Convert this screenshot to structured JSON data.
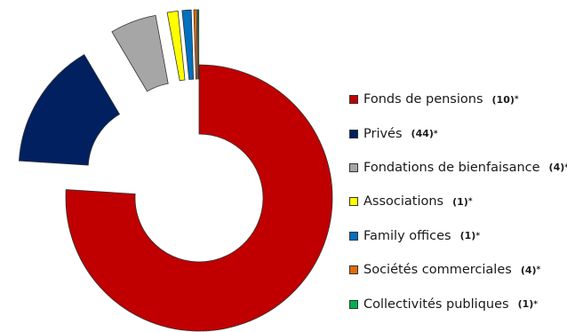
{
  "chart_data": {
    "type": "pie",
    "donut": true,
    "exploded": true,
    "title": "",
    "legend_position": "right",
    "slices": [
      {
        "label": "Fonds de pensions",
        "count": "(10)",
        "mark": "*",
        "value": 76.0,
        "color": "#c00000"
      },
      {
        "label": "Privés",
        "count": "(44)",
        "mark": "*",
        "value": 15.5,
        "color": "#002060"
      },
      {
        "label": "Fondations de bienfaisance",
        "count": "(4)",
        "mark": "*",
        "value": 5.6,
        "color": "#a6a6a6"
      },
      {
        "label": "Associations",
        "count": "(1)",
        "mark": "*",
        "value": 1.3,
        "color": "#ffff00"
      },
      {
        "label": "Family offices",
        "count": "(1)",
        "mark": "*",
        "value": 1.1,
        "color": "#0070c0"
      },
      {
        "label": "Sociétés commerciales",
        "count": "(4)",
        "mark": "*",
        "value": 0.35,
        "color": "#e26b0a"
      },
      {
        "label": "Collectivités publiques",
        "count": "(1)",
        "mark": "*",
        "value": 0.15,
        "color": "#00b050"
      }
    ]
  }
}
